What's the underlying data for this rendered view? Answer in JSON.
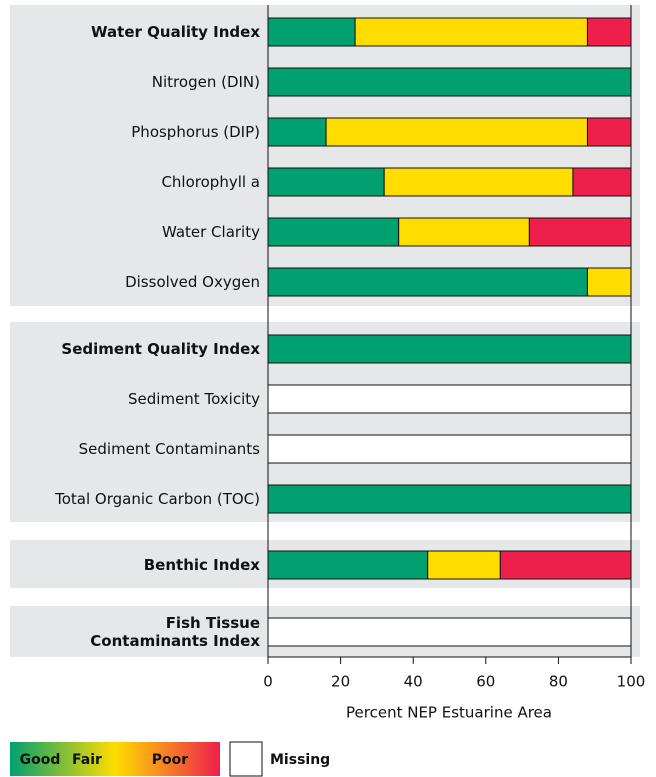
{
  "chart_data": {
    "type": "stacked-barh",
    "categories": [
      "Water Quality Index",
      "Nitrogen (DIN)",
      "Phosphorus (DIP)",
      "Chlorophyll a",
      "Water Clarity",
      "Dissolved Oxygen",
      "Sediment Quality Index",
      "Sediment Toxicity",
      "Sediment Contaminants",
      "Total Organic Carbon (TOC)",
      "Benthic Index",
      "Fish Tissue\nContaminants Index"
    ],
    "series": [
      {
        "name": "Good",
        "color": "#00a070",
        "values": [
          24,
          100,
          16,
          32,
          36,
          88,
          100,
          0,
          0,
          100,
          44,
          0
        ]
      },
      {
        "name": "Fair",
        "color": "#ffdd00",
        "values": [
          64,
          0,
          72,
          52,
          36,
          12,
          0,
          0,
          0,
          0,
          20,
          0
        ]
      },
      {
        "name": "Poor",
        "color": "#ee1f4b",
        "values": [
          12,
          0,
          12,
          16,
          28,
          0,
          0,
          0,
          0,
          0,
          36,
          0
        ]
      },
      {
        "name": "Missing",
        "color": "#ffffff",
        "values": [
          0,
          0,
          0,
          0,
          0,
          0,
          0,
          100,
          100,
          0,
          0,
          100
        ]
      }
    ],
    "xlabel": "Percent NEP Estuarine Area",
    "xlim": [
      0,
      100
    ],
    "xticks": [
      0,
      20,
      40,
      60,
      80,
      100
    ]
  }
}
